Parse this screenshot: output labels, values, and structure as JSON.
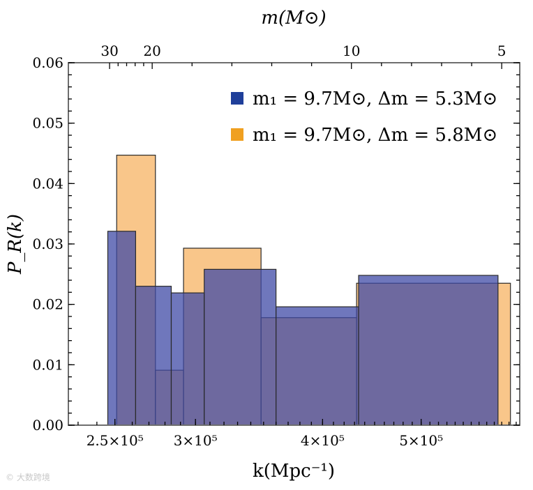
{
  "chart_data": {
    "type": "bar",
    "subtype": "histogram",
    "xlabel": "k(Mpc⁻¹)",
    "ylabel": "P_R(k)",
    "top_axis_label": "m(M⊙)",
    "xscale": "log",
    "xlim": [
      225000,
      625000
    ],
    "ylim": [
      0,
      0.06
    ],
    "x_ticks": [
      {
        "value": 250000,
        "label": "2.5×10⁵"
      },
      {
        "value": 300000,
        "label": "3×10⁵"
      },
      {
        "value": 400000,
        "label": "4×10⁵"
      },
      {
        "value": 500000,
        "label": "5×10⁵"
      }
    ],
    "y_ticks": [
      {
        "value": 0.0,
        "label": "0.00"
      },
      {
        "value": 0.01,
        "label": "0.01"
      },
      {
        "value": 0.02,
        "label": "0.02"
      },
      {
        "value": 0.03,
        "label": "0.03"
      },
      {
        "value": 0.04,
        "label": "0.04"
      },
      {
        "value": 0.05,
        "label": "0.05"
      },
      {
        "value": 0.06,
        "label": "0.06"
      }
    ],
    "top_ticks": [
      {
        "value": 30,
        "label": "30",
        "k": 247000
      },
      {
        "value": 20,
        "label": "20",
        "k": 272000
      },
      {
        "value": 10,
        "label": "10",
        "k": 427000
      },
      {
        "value": 5,
        "label": "5",
        "k": 600000
      }
    ],
    "series": [
      {
        "name": "m₁ = 9.7M⊙, Δm = 5.3M⊙",
        "color": "#3f4aa6",
        "legend_color": "#1f3f9a",
        "bins": [
          {
            "k_start": 246000,
            "k_end": 262000,
            "value": 0.0321
          },
          {
            "k_start": 262000,
            "k_end": 284000,
            "value": 0.023
          },
          {
            "k_start": 284000,
            "k_end": 306000,
            "value": 0.0219
          },
          {
            "k_start": 306000,
            "k_end": 360000,
            "value": 0.0258
          },
          {
            "k_start": 360000,
            "k_end": 434000,
            "value": 0.0196
          },
          {
            "k_start": 434000,
            "k_end": 595000,
            "value": 0.0248
          }
        ]
      },
      {
        "name": "m₁ = 9.7M⊙, Δm = 5.8M⊙",
        "color": "#f5a03c",
        "legend_color": "#f0a020",
        "bins": [
          {
            "k_start": 251000,
            "k_end": 274000,
            "value": 0.0447
          },
          {
            "k_start": 274000,
            "k_end": 292000,
            "value": 0.0091
          },
          {
            "k_start": 292000,
            "k_end": 348000,
            "value": 0.0293
          },
          {
            "k_start": 348000,
            "k_end": 432000,
            "value": 0.0178
          },
          {
            "k_start": 432000,
            "k_end": 612000,
            "value": 0.0235
          }
        ]
      }
    ]
  },
  "watermark": "© 大数跨境"
}
